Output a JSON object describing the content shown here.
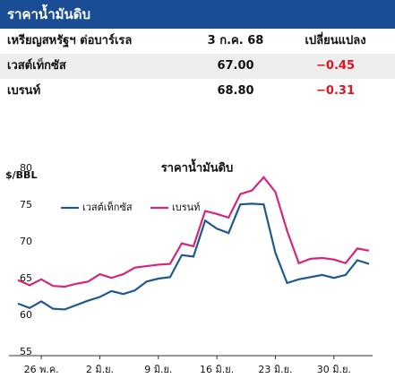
{
  "header": {
    "title": "ราคาน้ำมันดิบ"
  },
  "table": {
    "columns": [
      "เหรียญสหรัฐฯ ต่อบาร์เรล",
      "3 ก.ค. 68",
      "เปลี่ยนแปลง"
    ],
    "rows": [
      [
        "เวสต์เท็กซัส",
        "67.00",
        "−0.45"
      ],
      [
        "เบรนท์",
        "68.80",
        "−0.31"
      ]
    ]
  },
  "chart_data": {
    "type": "line",
    "title": "ราคาน้ำมันดิบ",
    "y_label": "$/BBL",
    "categories": [
      null,
      null,
      "26 พ.ค.",
      null,
      null,
      null,
      null,
      "2 มิ.ย.",
      null,
      null,
      null,
      null,
      "9 มิ.ย.",
      null,
      null,
      null,
      null,
      "16 มิ.ย.",
      null,
      null,
      null,
      null,
      "23 มิ.ย.",
      null,
      null,
      null,
      null,
      "30 มิ.ย.",
      null,
      null,
      null
    ],
    "series": [
      {
        "name": "เวสต์เท็กซัส",
        "color": "#1f5a8c",
        "values": [
          61.6,
          61.0,
          61.9,
          60.9,
          60.8,
          61.4,
          62.0,
          62.5,
          63.3,
          62.9,
          63.4,
          64.6,
          65.0,
          65.2,
          68.2,
          68.0,
          72.9,
          71.8,
          71.2,
          75.1,
          75.2,
          75.1,
          68.5,
          64.4,
          64.9,
          65.2,
          65.5,
          65.1,
          65.5,
          67.5,
          67.0
        ]
      },
      {
        "name": "เบรนท์",
        "color": "#d6267c",
        "values": [
          64.8,
          64.1,
          64.9,
          64.0,
          63.9,
          64.3,
          64.6,
          65.6,
          65.1,
          65.6,
          66.5,
          66.7,
          66.9,
          67.0,
          69.8,
          69.4,
          74.2,
          73.8,
          73.3,
          76.5,
          77.0,
          78.8,
          76.8,
          71.5,
          67.1,
          67.7,
          67.8,
          67.6,
          67.1,
          69.1,
          68.8
        ]
      }
    ],
    "ylim": [
      55,
      80
    ],
    "yticks": [
      55,
      60,
      65,
      70,
      75,
      80
    ],
    "grid": false
  }
}
